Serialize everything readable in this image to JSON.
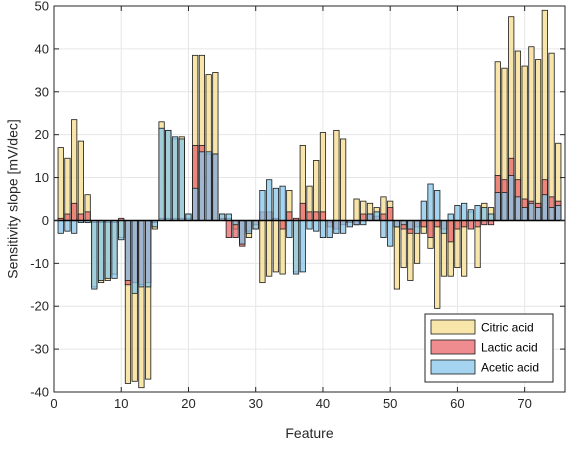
{
  "chart_data": {
    "type": "bar",
    "xlabel": "Feature",
    "ylabel": "Sensitivity slope [mV/dec]",
    "xlim": [
      0,
      76
    ],
    "ylim": [
      -40,
      50
    ],
    "xticks": [
      0,
      10,
      20,
      30,
      40,
      50,
      60,
      70
    ],
    "yticks": [
      -40,
      -30,
      -20,
      -10,
      0,
      10,
      20,
      30,
      40,
      50
    ],
    "grid": true,
    "legend_position": "bottom-right",
    "x": [
      1,
      2,
      3,
      4,
      5,
      6,
      7,
      8,
      9,
      10,
      11,
      12,
      13,
      14,
      15,
      16,
      17,
      18,
      19,
      20,
      21,
      22,
      23,
      24,
      25,
      26,
      27,
      28,
      29,
      30,
      31,
      32,
      33,
      34,
      35,
      36,
      37,
      38,
      39,
      40,
      41,
      42,
      43,
      44,
      45,
      46,
      47,
      48,
      49,
      50,
      51,
      52,
      53,
      54,
      55,
      56,
      57,
      58,
      59,
      60,
      61,
      62,
      63,
      64,
      65,
      66,
      67,
      68,
      69,
      70,
      71,
      72,
      73,
      74,
      75
    ],
    "series": [
      {
        "name": "Citric acid",
        "color": "#f5dc8c",
        "values": [
          17,
          14.5,
          23.5,
          18.5,
          6,
          -15.5,
          -14.5,
          -14,
          -12.5,
          -4,
          -38,
          -37.5,
          -39,
          -37,
          -2,
          23,
          21,
          19,
          19.5,
          1.5,
          38.5,
          38.5,
          34,
          34.5,
          1.5,
          0.5,
          -2,
          -5,
          -4,
          -2,
          -14.5,
          -13,
          -12,
          -12.5,
          7,
          -12,
          17.5,
          8,
          14,
          20.5,
          -0.5,
          21,
          19,
          -0.5,
          5,
          4.5,
          4,
          3,
          5.5,
          4.5,
          -16,
          -11,
          -14,
          -10,
          -3,
          -6.5,
          -20.5,
          -13,
          -13,
          -11,
          -13,
          2,
          -11,
          4,
          3,
          37,
          35.5,
          47.5,
          39.5,
          36,
          40.5,
          37.5,
          49,
          39,
          18
        ]
      },
      {
        "name": "Lactic acid",
        "color": "#e8666b",
        "values": [
          0.5,
          1.5,
          4,
          1.5,
          2,
          -0.5,
          -0.5,
          -0.5,
          -0.5,
          0.5,
          -15,
          -14.5,
          -15,
          -14.5,
          -0.5,
          0.5,
          0.5,
          0.5,
          0.5,
          0.5,
          17.5,
          17.5,
          15.5,
          15.5,
          0.5,
          -4,
          -4,
          -6,
          -2.5,
          -1,
          2,
          2,
          0.5,
          -2,
          2,
          0.5,
          4,
          2,
          2,
          2,
          -1.5,
          -2,
          -1,
          -0.5,
          -1,
          1.5,
          1.5,
          1,
          1.5,
          3,
          -1.5,
          -2,
          -3,
          -1.5,
          -1.5,
          -4,
          -1.5,
          -2,
          -5,
          -2,
          -1.5,
          -2,
          -1.5,
          -1,
          -1,
          10.5,
          9.5,
          14.5,
          9.5,
          5,
          4.5,
          4,
          9.5,
          5.5,
          4.5
        ]
      },
      {
        "name": "Acetic acid",
        "color": "#85c5eb",
        "values": [
          -3,
          -2.5,
          -3,
          -0.5,
          -0.5,
          -16,
          -14,
          -13.5,
          -13.5,
          -4.5,
          -14,
          -17,
          -15.5,
          -15.5,
          -1.5,
          21.5,
          21,
          19.5,
          19,
          1.5,
          7.5,
          16,
          16,
          15.5,
          1.5,
          1.5,
          -1,
          -5.5,
          -3,
          -2,
          7,
          9.5,
          7.5,
          8,
          -4,
          -12.5,
          -12,
          -2,
          -2.5,
          -4,
          -4,
          -3,
          -3,
          -1.5,
          -1,
          -1,
          1.5,
          2,
          -4,
          -6,
          -1.5,
          -1,
          -2,
          -3,
          4.5,
          8.5,
          7,
          -3,
          1.5,
          3.5,
          4,
          2.5,
          3.5,
          3,
          1.5,
          6.5,
          6.5,
          10.5,
          5.5,
          3,
          4,
          3,
          6,
          3,
          3.5
        ]
      }
    ]
  }
}
